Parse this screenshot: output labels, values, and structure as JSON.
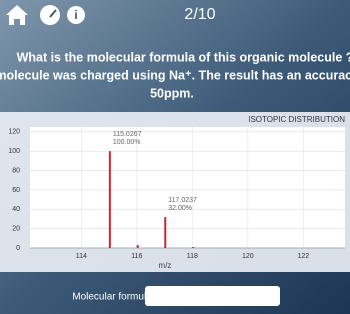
{
  "header": {
    "progress": "2/10"
  },
  "question": {
    "line1": "What is the molecular formula of this organic molecule ?",
    "line2": "The molecule was charged using Na⁺. The result has an accuracy of",
    "line3": "50ppm."
  },
  "chart_data": {
    "type": "bar",
    "title": "ISOTOPIC DISTRIBUTION",
    "x_label": "m/z",
    "x": [
      115.0267,
      116.03,
      117.0237,
      118.03
    ],
    "values": [
      100,
      3,
      32,
      1
    ],
    "x_labels": [
      "115.0267",
      null,
      "117.0237",
      null
    ],
    "value_labels": [
      "100.00%",
      null,
      "32.00%",
      null
    ],
    "color": "#d3232a",
    "xlim": [
      112.15,
      123.5
    ],
    "xticks": [
      114,
      116,
      118,
      120,
      122
    ],
    "ylim": [
      0,
      125
    ],
    "yticks": [
      0,
      20,
      40,
      60,
      80,
      100,
      120
    ],
    "grid": true
  },
  "answer": {
    "label": "Molecular formula"
  }
}
